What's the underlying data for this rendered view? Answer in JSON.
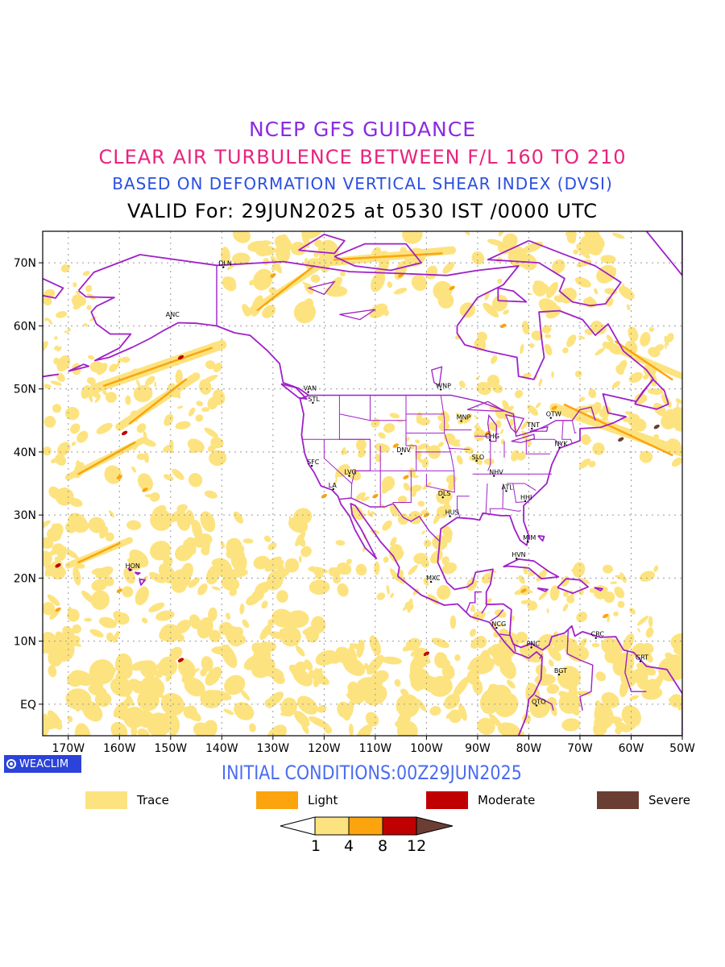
{
  "titles": {
    "line1": "NCEP GFS GUIDANCE",
    "line2": "CLEAR AIR TURBULENCE BETWEEN F/L 160 TO 210",
    "line3": "BASED ON DEFORMATION VERTICAL SHEAR INDEX (DVSI)",
    "line4": "VALID For: 29JUN2025 at 0530 IST /0000 UTC"
  },
  "colors": {
    "line1": "#8a2be2",
    "line2": "#e8247c",
    "line3": "#2b4fe0",
    "line4": "#000000",
    "coast": "#a020c8",
    "grid": "#9a9a9a",
    "trace": "#fde37f",
    "light": "#fca40e",
    "moderate": "#c00000",
    "severe": "#6b3e33",
    "badge": "#2b43d8",
    "init": "#4a6cf0"
  },
  "axes": {
    "y_ticks": [
      "70N",
      "60N",
      "50N",
      "40N",
      "30N",
      "20N",
      "10N",
      "EQ"
    ],
    "x_ticks": [
      "170W",
      "160W",
      "150W",
      "140W",
      "130W",
      "120W",
      "110W",
      "100W",
      "90W",
      "80W",
      "70W",
      "60W",
      "50W"
    ]
  },
  "stations": [
    {
      "id": "DLN",
      "lon": -139.7,
      "lat": 69.3
    },
    {
      "id": "ANC",
      "lon": -150.0,
      "lat": 61.2
    },
    {
      "id": "VAN",
      "lon": -123.1,
      "lat": 49.5
    },
    {
      "id": "STL",
      "lon": -122.2,
      "lat": 47.8
    },
    {
      "id": "WNP",
      "lon": -97.2,
      "lat": 49.9
    },
    {
      "id": "MNP",
      "lon": -93.2,
      "lat": 44.9
    },
    {
      "id": "TNT",
      "lon": -79.4,
      "lat": 43.7
    },
    {
      "id": "OTW",
      "lon": -75.7,
      "lat": 45.4
    },
    {
      "id": "CHG",
      "lon": -87.6,
      "lat": 41.9
    },
    {
      "id": "NYK",
      "lon": -74.0,
      "lat": 40.7
    },
    {
      "id": "DNV",
      "lon": -104.9,
      "lat": 39.7
    },
    {
      "id": "SFC",
      "lon": -122.4,
      "lat": 37.8
    },
    {
      "id": "LVG",
      "lon": -115.1,
      "lat": 36.2
    },
    {
      "id": "SLO",
      "lon": -90.2,
      "lat": 38.6
    },
    {
      "id": "NHV",
      "lon": -86.8,
      "lat": 36.2
    },
    {
      "id": "LA",
      "lon": -118.2,
      "lat": 34.1
    },
    {
      "id": "ATL",
      "lon": -84.4,
      "lat": 33.8
    },
    {
      "id": "DLS",
      "lon": -96.8,
      "lat": 32.8
    },
    {
      "id": "HHI",
      "lon": -80.7,
      "lat": 32.2
    },
    {
      "id": "HUS",
      "lon": -95.4,
      "lat": 29.8
    },
    {
      "id": "MIM",
      "lon": -80.2,
      "lat": 25.8
    },
    {
      "id": "HVN",
      "lon": -82.4,
      "lat": 23.1
    },
    {
      "id": "HON",
      "lon": -157.9,
      "lat": 21.3
    },
    {
      "id": "MXC",
      "lon": -99.1,
      "lat": 19.4
    },
    {
      "id": "NCG",
      "lon": -86.3,
      "lat": 12.1
    },
    {
      "id": "CRC",
      "lon": -66.9,
      "lat": 10.5
    },
    {
      "id": "PNC",
      "lon": -79.5,
      "lat": 9.0
    },
    {
      "id": "GRT",
      "lon": -58.2,
      "lat": 6.8
    },
    {
      "id": "BGT",
      "lon": -74.1,
      "lat": 4.7
    },
    {
      "id": "QTO",
      "lon": -78.5,
      "lat": -0.2
    }
  ],
  "badge": {
    "label": "WEACLIM"
  },
  "initial_conditions": "INITIAL CONDITIONS:00Z29JUN2025",
  "legend": [
    {
      "label": "Trace",
      "color": "#fde37f"
    },
    {
      "label": "Light",
      "color": "#fca40e"
    },
    {
      "label": "Moderate",
      "color": "#c00000"
    },
    {
      "label": "Severe",
      "color": "#6b3e33"
    }
  ],
  "colorbar": {
    "ticks": [
      "1",
      "4",
      "8",
      "12"
    ],
    "colors": [
      "#ffffff",
      "#fde37f",
      "#fca40e",
      "#c00000",
      "#6b3e33"
    ]
  }
}
